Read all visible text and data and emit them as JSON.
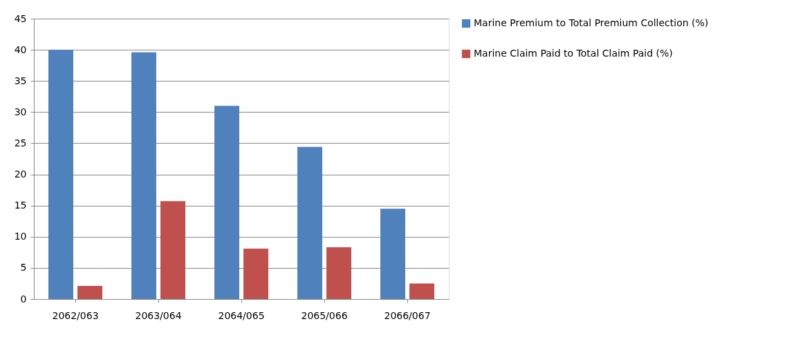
{
  "chart_data": {
    "type": "bar",
    "categories": [
      "2062/063",
      "2063/064",
      "2064/065",
      "2065/066",
      "2066/067"
    ],
    "series": [
      {
        "name": "Marine Premium to Total Premium Collection (%)",
        "color": "#4f81bd",
        "values": [
          40,
          39.6,
          31,
          24.4,
          14.5
        ]
      },
      {
        "name": "Marine Claim Paid to Total Claim Paid (%)",
        "color": "#c0504d",
        "values": [
          2.1,
          15.7,
          8.1,
          8.3,
          2.5
        ]
      }
    ],
    "ylim": [
      0,
      45
    ],
    "yticks": [
      0,
      5,
      10,
      15,
      20,
      25,
      30,
      35,
      40,
      45
    ],
    "grid": "y",
    "legend": "right"
  }
}
